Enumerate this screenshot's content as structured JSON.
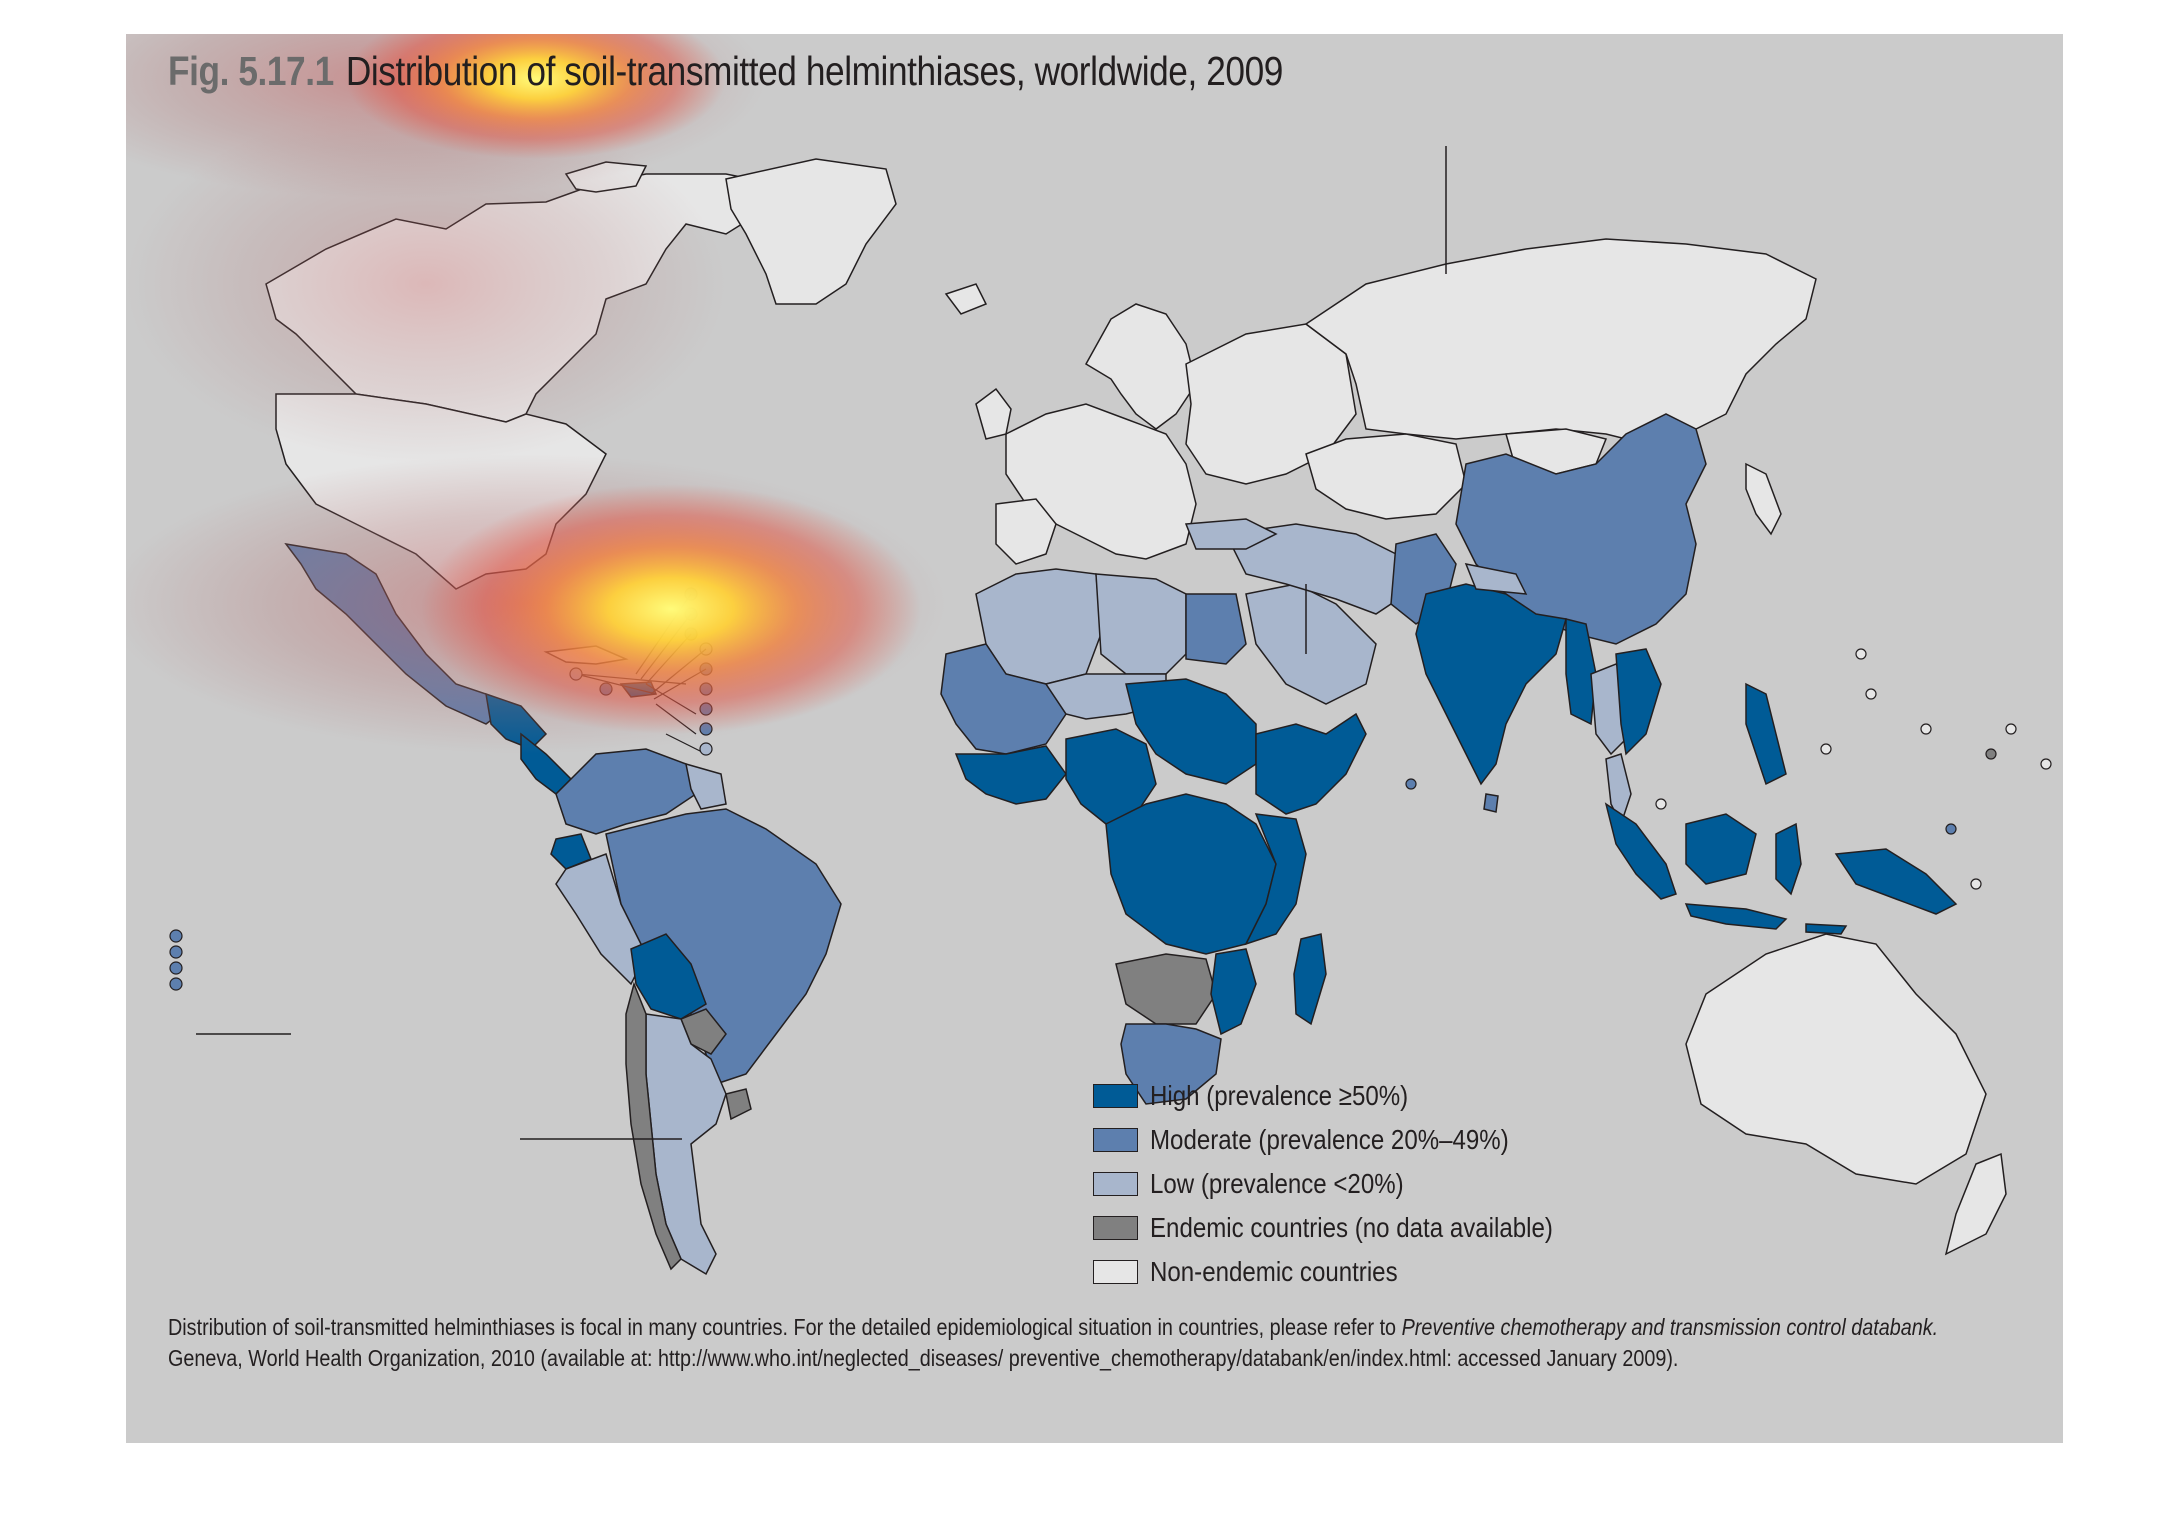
{
  "figure": {
    "label": "Fig. 5.17.1",
    "title": "Distribution of soil-transmitted helminthiases, worldwide, 2009"
  },
  "legend": {
    "items": [
      {
        "label": "High (prevalence ≥50%)",
        "color": "#005b96"
      },
      {
        "label": "Moderate (prevalence 20%–49%)",
        "color": "#5d7fae"
      },
      {
        "label": "Low (prevalence <20%)",
        "color": "#a8b6cc"
      },
      {
        "label": "Endemic countries (no data available)",
        "color": "#808080"
      },
      {
        "label": "Non-endemic countries",
        "color": "#e6e6e6"
      }
    ]
  },
  "footnote": {
    "line1_plain": "Distribution of soil-transmitted helminthiases is focal in many countries. For the detailed epidemiological situation in countries, please refer to ",
    "line1_italic": "Preventive chemotherapy and transmission control databank.",
    "line2": "Geneva, World Health Organization, 2010 (available at: http://www.who.int/neglected_diseases/ preventive_chemotherapy/databank/en/index.html: accessed January 2009)."
  },
  "colors": {
    "panel_background": "#cbcbcb",
    "high": "#005b96",
    "moderate": "#5d7fae",
    "low": "#a8b6cc",
    "endemic_no_data": "#808080",
    "non_endemic": "#e6e6e6",
    "outline": "#231f20"
  },
  "overlays": [
    "heatmap-glow-top-left",
    "heatmap-glow-caribbean"
  ]
}
